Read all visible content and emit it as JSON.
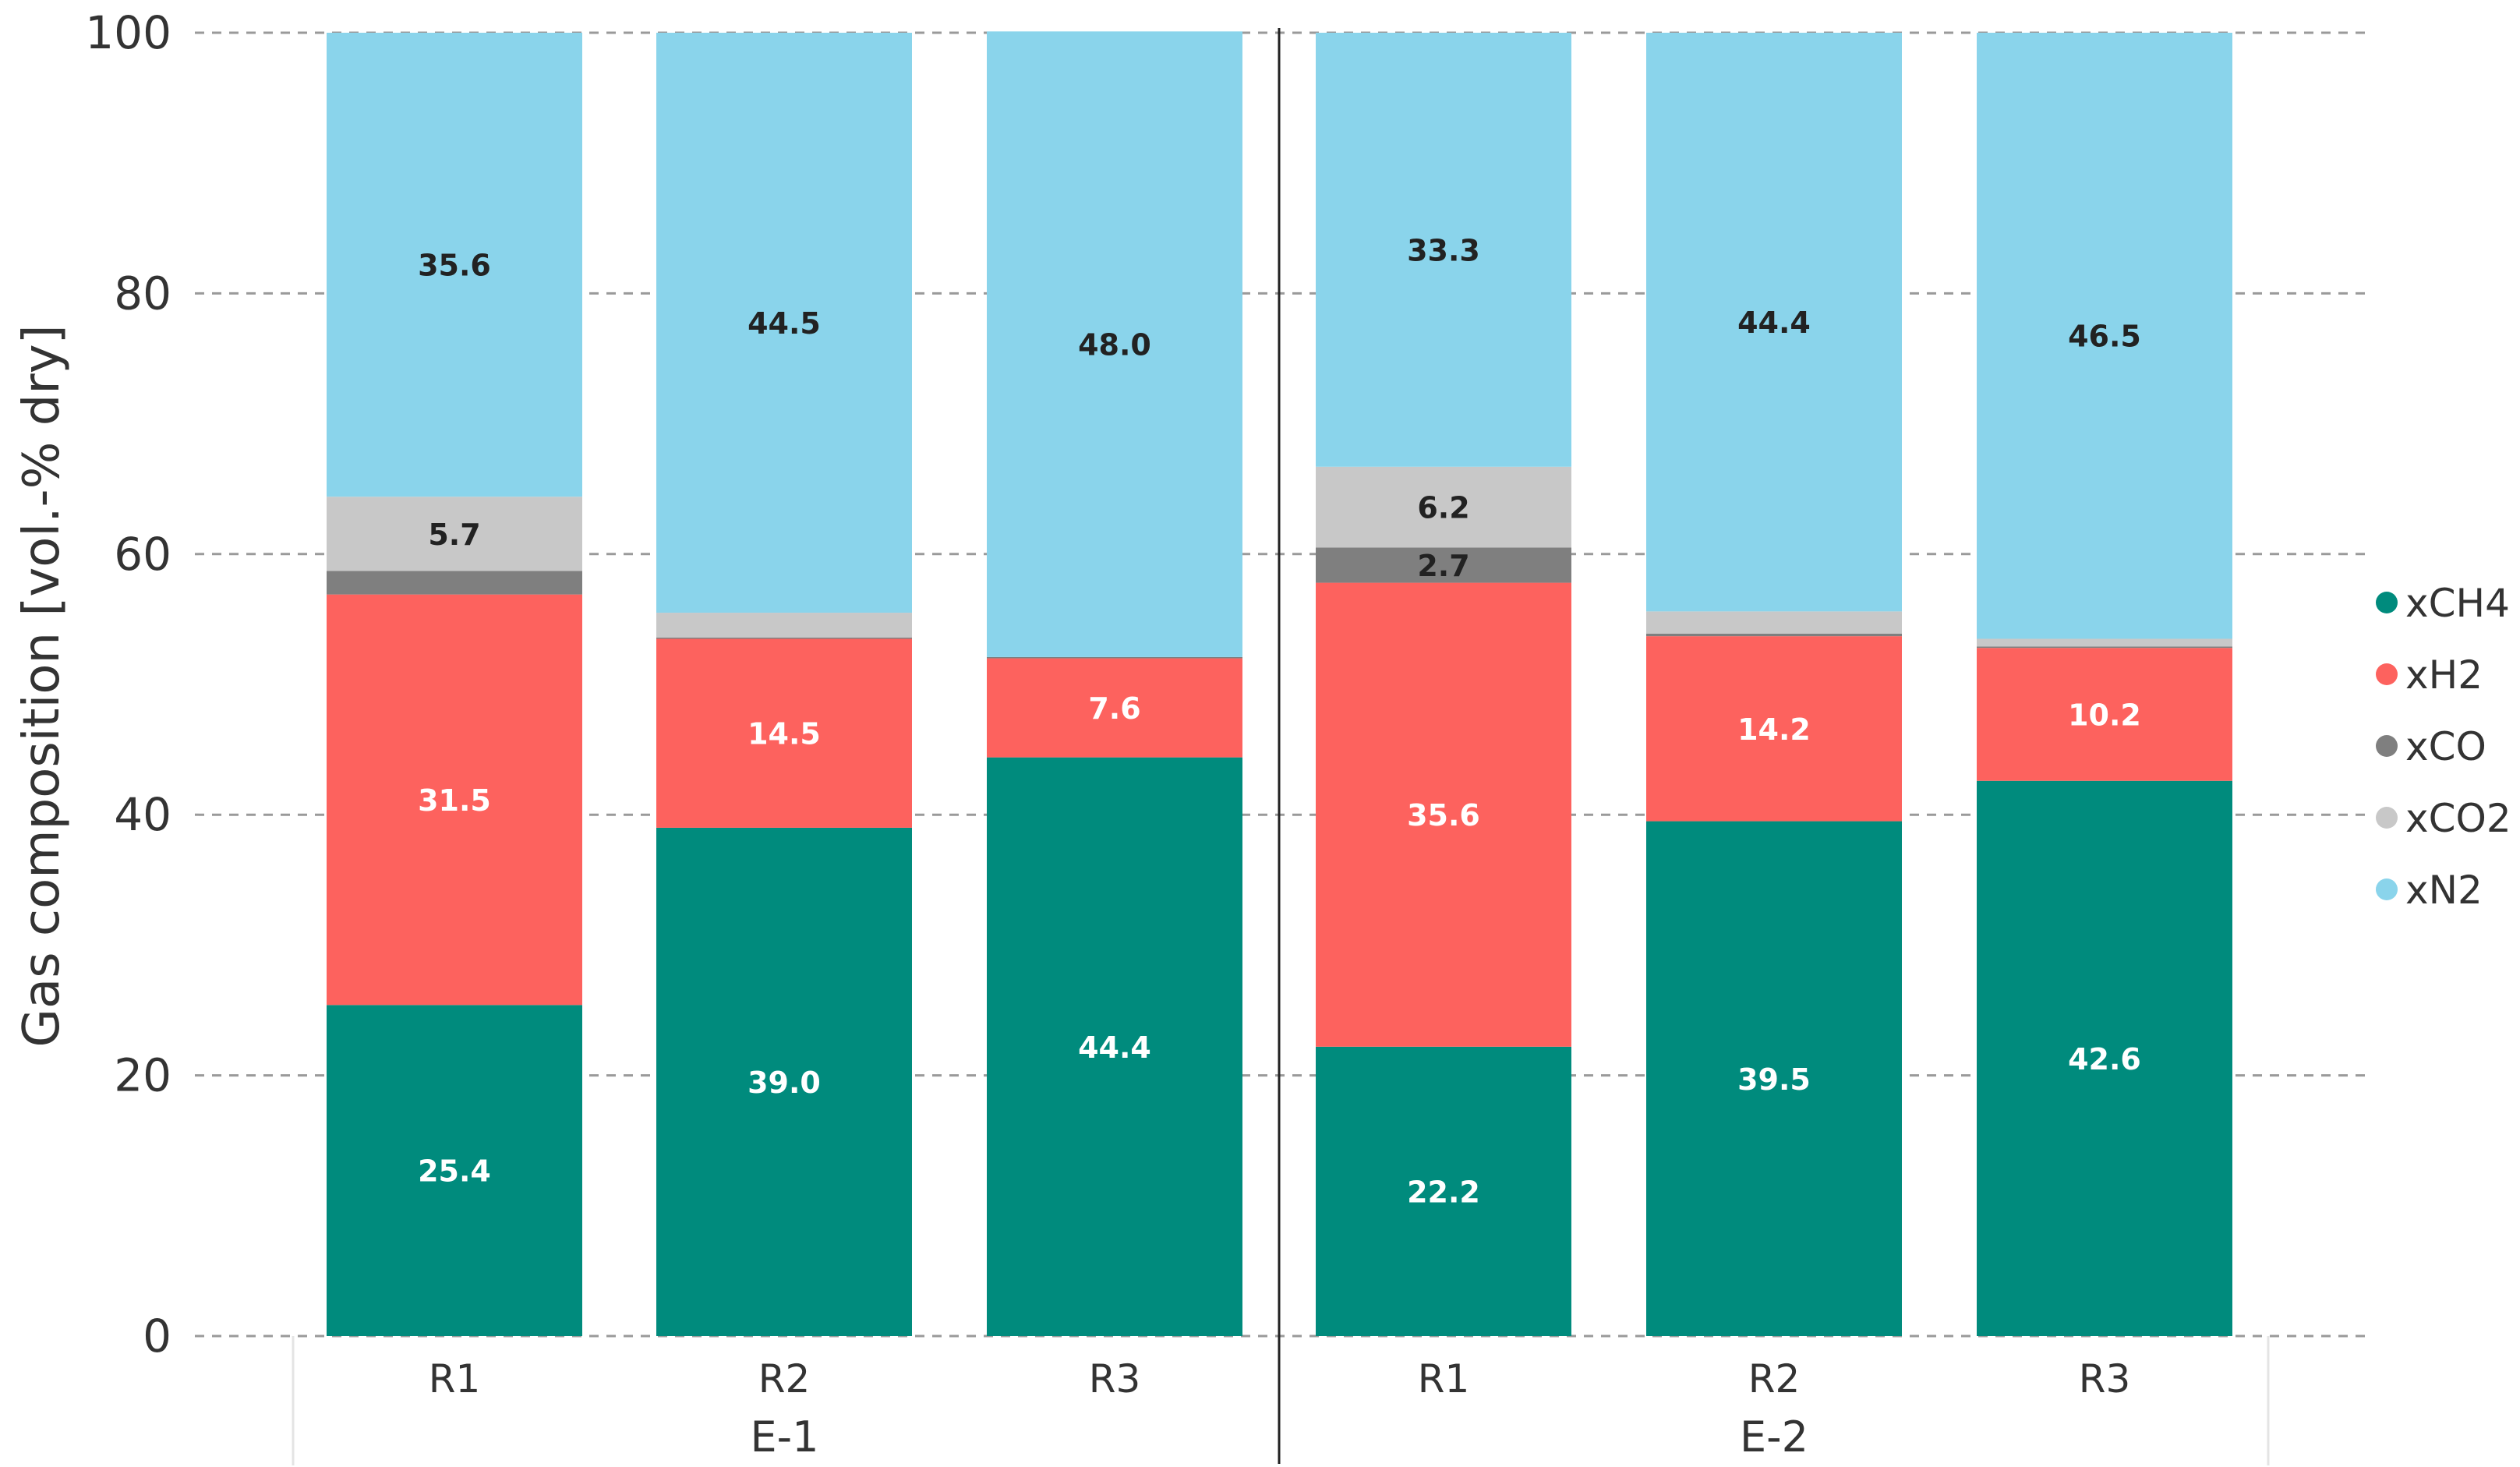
{
  "chart_data": {
    "type": "bar",
    "stacked": true,
    "ylabel": "Gas composition [vol.-% dry]",
    "ylim": [
      0,
      100
    ],
    "yticks": [
      "0",
      "20",
      "40",
      "60",
      "80",
      "100"
    ],
    "grid": "horizontal-dashed",
    "legend_position": "right",
    "groups": [
      {
        "label": "E-1",
        "categories": [
          "R1",
          "R2",
          "R3"
        ]
      },
      {
        "label": "E-2",
        "categories": [
          "R1",
          "R2",
          "R3"
        ]
      }
    ],
    "series": [
      {
        "name": "xCH4",
        "color": "#008B7D",
        "label_color": "#ffffff",
        "values": [
          25.4,
          39.0,
          44.4,
          22.2,
          39.5,
          42.6
        ],
        "labels": [
          "25.4",
          "39.0",
          "44.4",
          "22.2",
          "39.5",
          "42.6"
        ]
      },
      {
        "name": "xH2",
        "color": "#FD625E",
        "label_color": "#ffffff",
        "values": [
          31.5,
          14.5,
          7.6,
          35.6,
          14.2,
          10.2
        ],
        "labels": [
          "31.5",
          "14.5",
          "7.6",
          "35.6",
          "14.2",
          "10.2"
        ]
      },
      {
        "name": "xCO",
        "color": "#7F7F7F",
        "label_color": "#222222",
        "values": [
          1.8,
          0.1,
          0.1,
          2.7,
          0.2,
          0.1
        ],
        "labels": [
          "",
          "",
          "",
          "2.7",
          "",
          ""
        ]
      },
      {
        "name": "xCO2",
        "color": "#C8C8C8",
        "label_color": "#222222",
        "values": [
          5.7,
          1.9,
          0.0,
          6.2,
          1.7,
          0.6
        ],
        "labels": [
          "5.7",
          "",
          "",
          "6.2",
          "",
          ""
        ]
      },
      {
        "name": "xN2",
        "color": "#8AD4EB",
        "label_color": "#222222",
        "values": [
          35.6,
          44.5,
          48.0,
          33.3,
          44.4,
          46.5
        ],
        "labels": [
          "35.6",
          "44.5",
          "48.0",
          "33.3",
          "44.4",
          "46.5"
        ]
      }
    ]
  }
}
